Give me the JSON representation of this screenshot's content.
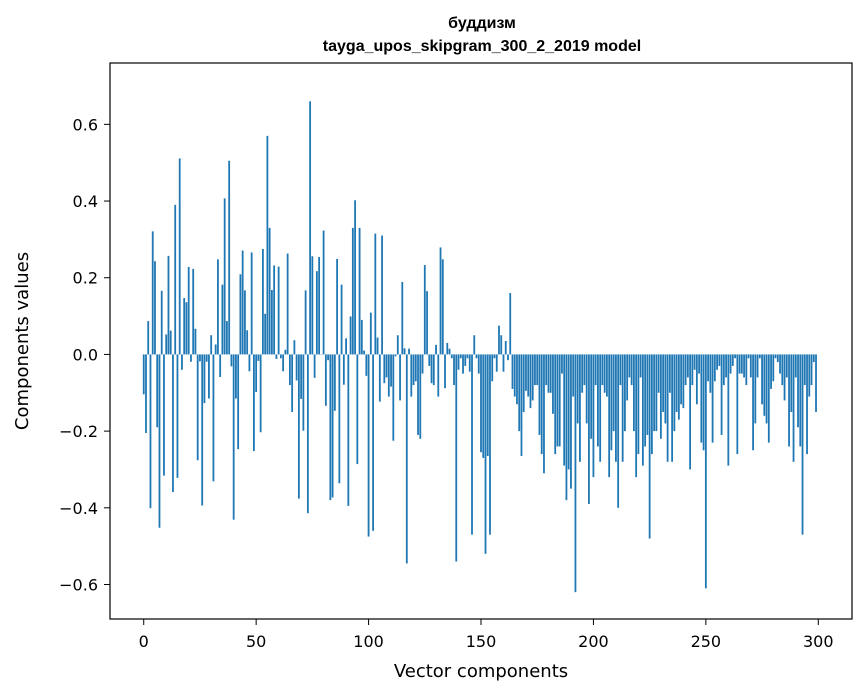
{
  "chart_data": {
    "type": "bar",
    "title": "буддизм",
    "subtitle": "tayga_upos_skipgram_300_2_2019 model",
    "xlabel": "Vector components",
    "ylabel": "Components values",
    "xlim": [
      -15,
      315
    ],
    "ylim": [
      -0.69,
      0.76
    ],
    "x_ticks": [
      0,
      50,
      100,
      150,
      200,
      250,
      300
    ],
    "x_tick_labels": [
      "0",
      "50",
      "100",
      "150",
      "200",
      "250",
      "300"
    ],
    "y_ticks": [
      -0.6,
      -0.4,
      -0.2,
      0.0,
      0.2,
      0.4,
      0.6
    ],
    "y_tick_labels": [
      "−0.6",
      "−0.4",
      "−0.2",
      "0.0",
      "0.2",
      "0.4",
      "0.6"
    ],
    "bar_color": "#1f77b4",
    "grid": false,
    "x": "0..299 (component index)",
    "values": [
      -0.104,
      -0.205,
      0.087,
      -0.401,
      0.321,
      0.243,
      -0.19,
      -0.452,
      0.166,
      -0.316,
      0.052,
      0.257,
      0.062,
      -0.359,
      0.39,
      -0.322,
      0.511,
      -0.04,
      0.147,
      0.136,
      0.228,
      -0.019,
      0.223,
      0.067,
      -0.276,
      -0.018,
      -0.394,
      -0.127,
      -0.019,
      -0.115,
      0.05,
      -0.331,
      0.026,
      0.248,
      -0.059,
      0.182,
      0.407,
      0.087,
      0.505,
      -0.031,
      -0.431,
      -0.115,
      -0.247,
      0.209,
      0.271,
      0.167,
      0.063,
      -0.044,
      0.266,
      -0.252,
      -0.098,
      -0.017,
      -0.203,
      0.275,
      0.106,
      0.57,
      0.33,
      0.168,
      0.232,
      -0.012,
      0.229,
      -0.01,
      -0.044,
      0.012,
      0.263,
      -0.08,
      -0.15,
      0.037,
      -0.068,
      -0.376,
      -0.116,
      -0.199,
      0.167,
      -0.414,
      0.66,
      0.256,
      -0.061,
      0.217,
      0.254,
      0.001,
      0.323,
      -0.134,
      -0.015,
      -0.38,
      -0.373,
      -0.147,
      0.249,
      -0.336,
      0.182,
      -0.079,
      0.042,
      -0.395,
      0.099,
      0.33,
      0.402,
      -0.286,
      0.33,
      0.09,
      0.01,
      -0.056,
      -0.475,
      0.109,
      -0.46,
      0.315,
      0.044,
      -0.123,
      0.31,
      -0.075,
      -0.06,
      -0.11,
      -0.084,
      -0.225,
      -0.005,
      0.05,
      -0.12,
      0.189,
      0.016,
      -0.545,
      0.015,
      -0.11,
      -0.08,
      -0.07,
      -0.21,
      -0.22,
      -0.05,
      0.233,
      0.165,
      -0.03,
      -0.075,
      -0.08,
      0.025,
      -0.11,
      0.279,
      0.248,
      -0.088,
      0.03,
      0.015,
      -0.01,
      -0.08,
      -0.54,
      -0.04,
      -0.01,
      -0.05,
      -0.03,
      -0.01,
      -0.045,
      -0.47,
      0.05,
      -0.01,
      -0.05,
      -0.255,
      -0.27,
      -0.52,
      -0.265,
      -0.47,
      -0.07,
      -0.01,
      -0.045,
      0.075,
      0.05,
      -0.045,
      0.035,
      -0.015,
      0.16,
      -0.09,
      -0.11,
      -0.13,
      -0.2,
      -0.265,
      -0.15,
      -0.095,
      -0.11,
      -0.14,
      -0.12,
      -0.08,
      -0.08,
      -0.21,
      -0.26,
      -0.31,
      -0.08,
      -0.1,
      -0.1,
      -0.155,
      -0.26,
      -0.24,
      -0.24,
      -0.05,
      -0.29,
      -0.38,
      -0.3,
      -0.35,
      -0.11,
      -0.62,
      -0.18,
      -0.28,
      -0.1,
      -0.08,
      -0.18,
      -0.39,
      -0.22,
      -0.32,
      -0.08,
      -0.24,
      -0.28,
      -0.08,
      -0.1,
      -0.11,
      -0.32,
      -0.25,
      -0.2,
      -0.28,
      -0.4,
      -0.08,
      -0.28,
      -0.2,
      -0.12,
      -0.06,
      -0.08,
      -0.2,
      -0.32,
      -0.26,
      -0.06,
      -0.29,
      -0.24,
      -0.21,
      -0.48,
      -0.26,
      -0.2,
      -0.2,
      -0.1,
      -0.22,
      -0.15,
      -0.18,
      -0.28,
      -0.1,
      -0.28,
      -0.2,
      -0.15,
      -0.17,
      -0.13,
      -0.14,
      -0.08,
      -0.06,
      -0.3,
      -0.08,
      -0.04,
      -0.13,
      -0.05,
      -0.23,
      -0.25,
      -0.61,
      -0.07,
      -0.1,
      -0.23,
      -0.07,
      -0.04,
      -0.03,
      -0.21,
      -0.08,
      -0.06,
      -0.29,
      -0.05,
      -0.03,
      -0.01,
      -0.26,
      -0.05,
      -0.05,
      -0.06,
      -0.08,
      -0.01,
      -0.06,
      -0.25,
      -0.18,
      -0.06,
      -0.01,
      -0.13,
      -0.16,
      -0.18,
      -0.23,
      -0.09,
      -0.07,
      -0.01,
      -0.02,
      -0.05,
      -0.08,
      -0.12,
      -0.06,
      -0.24,
      -0.15,
      -0.28,
      -0.06,
      -0.19,
      -0.24,
      -0.47,
      -0.08,
      -0.26,
      -0.11,
      -0.08,
      -0.02,
      -0.15
    ]
  }
}
